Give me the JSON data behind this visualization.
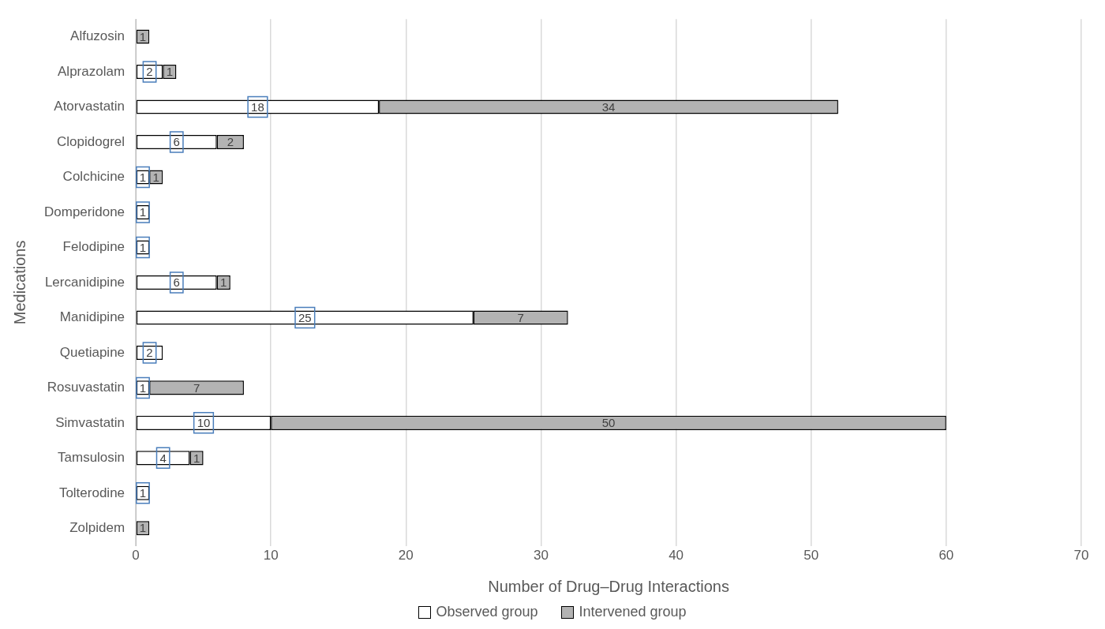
{
  "chart_data": {
    "type": "bar",
    "orientation": "horizontal",
    "stacked": true,
    "xlabel": "Number of Drug–Drug Interactions",
    "ylabel": "Medications",
    "categories": [
      "Alfuzosin",
      "Alprazolam",
      "Atorvastatin",
      "Clopidogrel",
      "Colchicine",
      "Domperidone",
      "Felodipine",
      "Lercanidipine",
      "Manidipine",
      "Quetiapine",
      "Rosuvastatin",
      "Simvastatin",
      "Tamsulosin",
      "Tolterodine",
      "Zolpidem"
    ],
    "series": [
      {
        "name": "Observed group",
        "color": "#ffffff",
        "values": [
          null,
          2,
          18,
          6,
          1,
          1,
          1,
          6,
          25,
          2,
          1,
          10,
          4,
          1,
          null
        ]
      },
      {
        "name": "Intervened group",
        "color": "#b3b3b3",
        "values": [
          1,
          1,
          34,
          2,
          1,
          null,
          null,
          1,
          7,
          null,
          7,
          50,
          1,
          null,
          1
        ]
      }
    ],
    "xlim": [
      0,
      70
    ],
    "xticks": [
      0,
      10,
      20,
      30,
      40,
      50,
      60,
      70
    ],
    "grid": "x",
    "legend": "bottom",
    "data_labels": true
  }
}
